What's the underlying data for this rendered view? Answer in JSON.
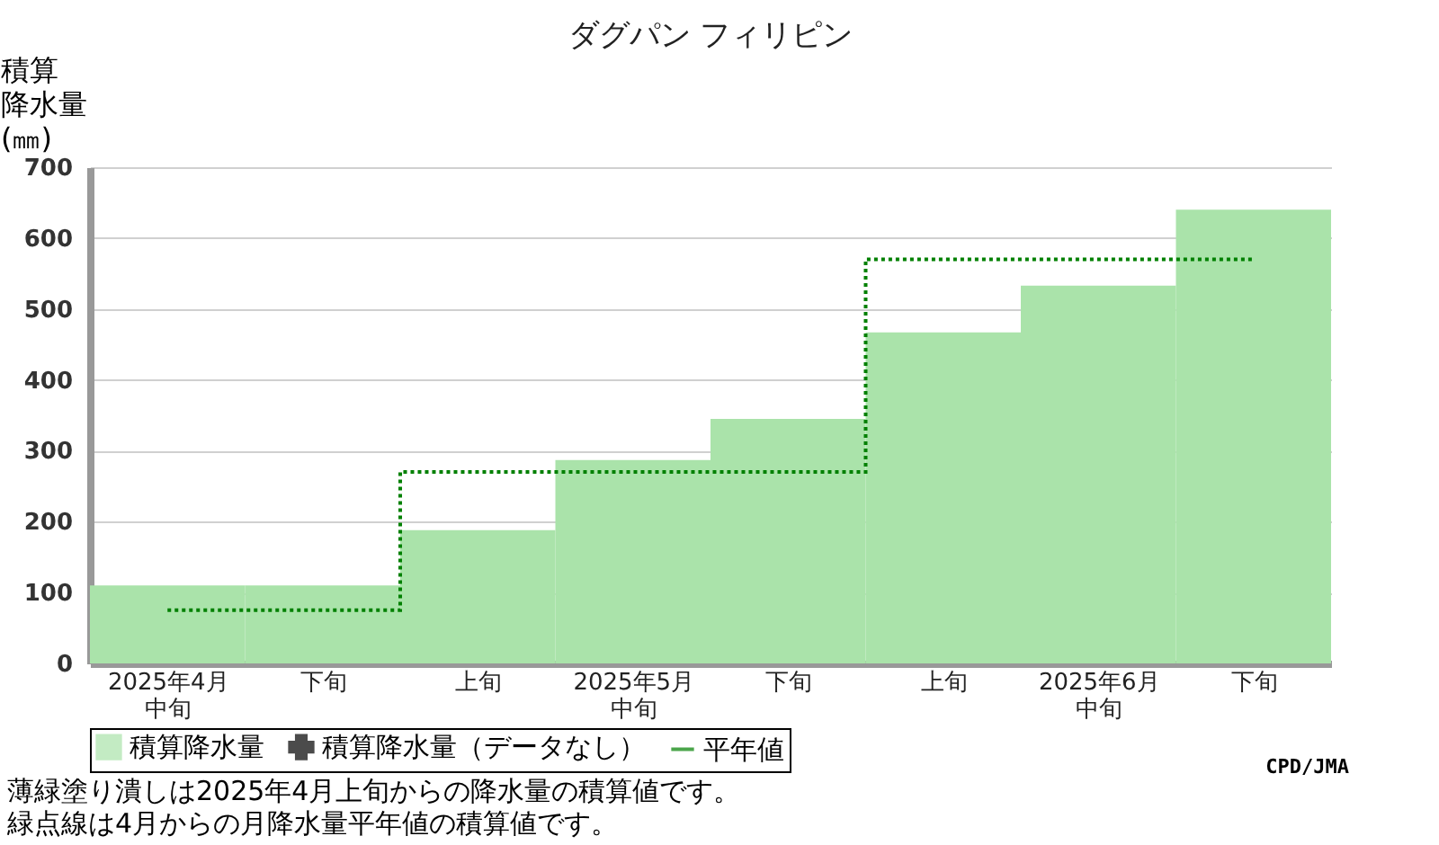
{
  "chart_data": {
    "type": "bar",
    "title": "ダグパン フィリピン",
    "ylabel": "積算降水量(㎜)",
    "categories": [
      "2025年4月中旬",
      "下旬",
      "上旬",
      "2025年5月中旬",
      "下旬",
      "上旬",
      "2025年6月中旬",
      "下旬"
    ],
    "series": [
      {
        "name": "積算降水量",
        "color": "#aae3aa",
        "values": [
          110,
          110,
          188,
          287,
          345,
          467,
          533,
          640
        ]
      },
      {
        "name": "積算降水量（データなし）",
        "type": "scatter",
        "marker": "cross",
        "color": "#000000",
        "values": [
          null,
          null,
          null,
          null,
          null,
          null,
          null,
          null
        ]
      },
      {
        "name": "平年値",
        "type": "step",
        "line_style": "dotted",
        "color": "#008000",
        "values": [
          75,
          75,
          270,
          270,
          270,
          570,
          570,
          570
        ]
      }
    ],
    "ylim": [
      0,
      700
    ],
    "yticks": [
      0,
      100,
      200,
      300,
      400,
      500,
      600,
      700
    ],
    "grid": "y",
    "legend": "bottom",
    "annotations": [
      "薄緑塗り潰しは2025年4月上旬からの降水量の積算値です。",
      "緑点線は4月からの月降水量平年値の積算値です。",
      "CPD/JMA"
    ]
  }
}
